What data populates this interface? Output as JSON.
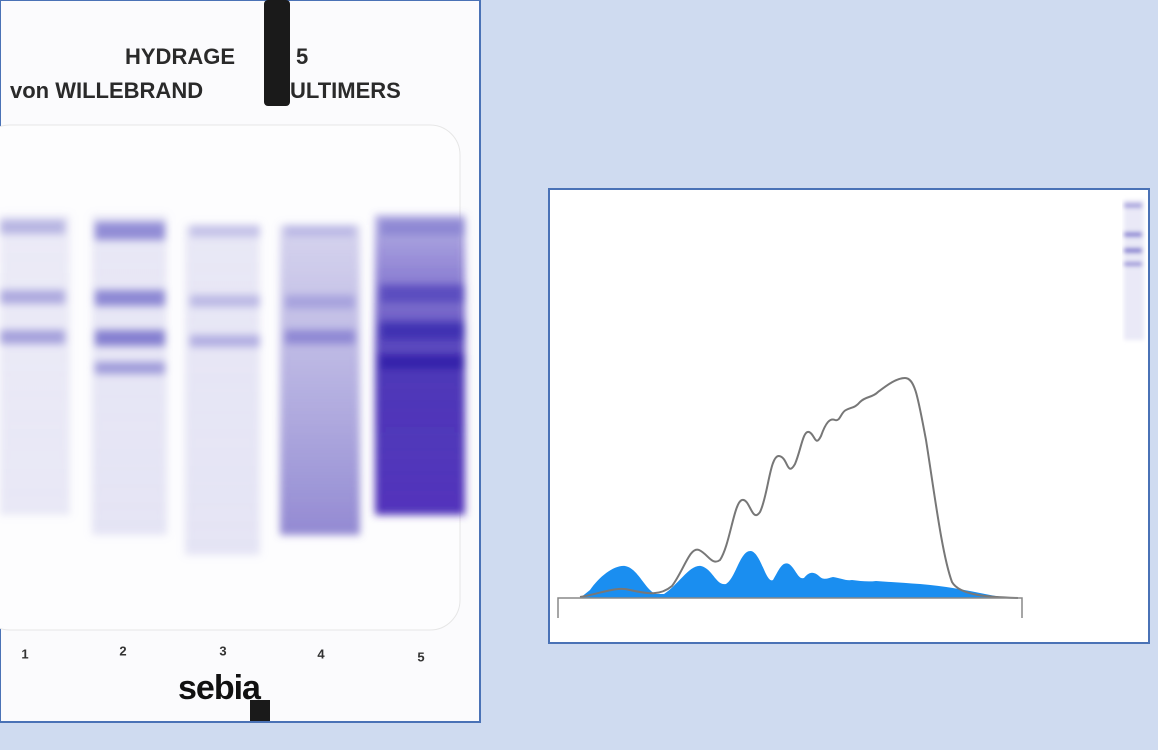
{
  "gel": {
    "title_lines": [
      "HYDRAGE",
      "5",
      "von WILLEBRAND",
      "ULTIMERS"
    ],
    "lanes": [
      "1",
      "2",
      "3",
      "4",
      "5"
    ],
    "brand": "sebia"
  }
}
